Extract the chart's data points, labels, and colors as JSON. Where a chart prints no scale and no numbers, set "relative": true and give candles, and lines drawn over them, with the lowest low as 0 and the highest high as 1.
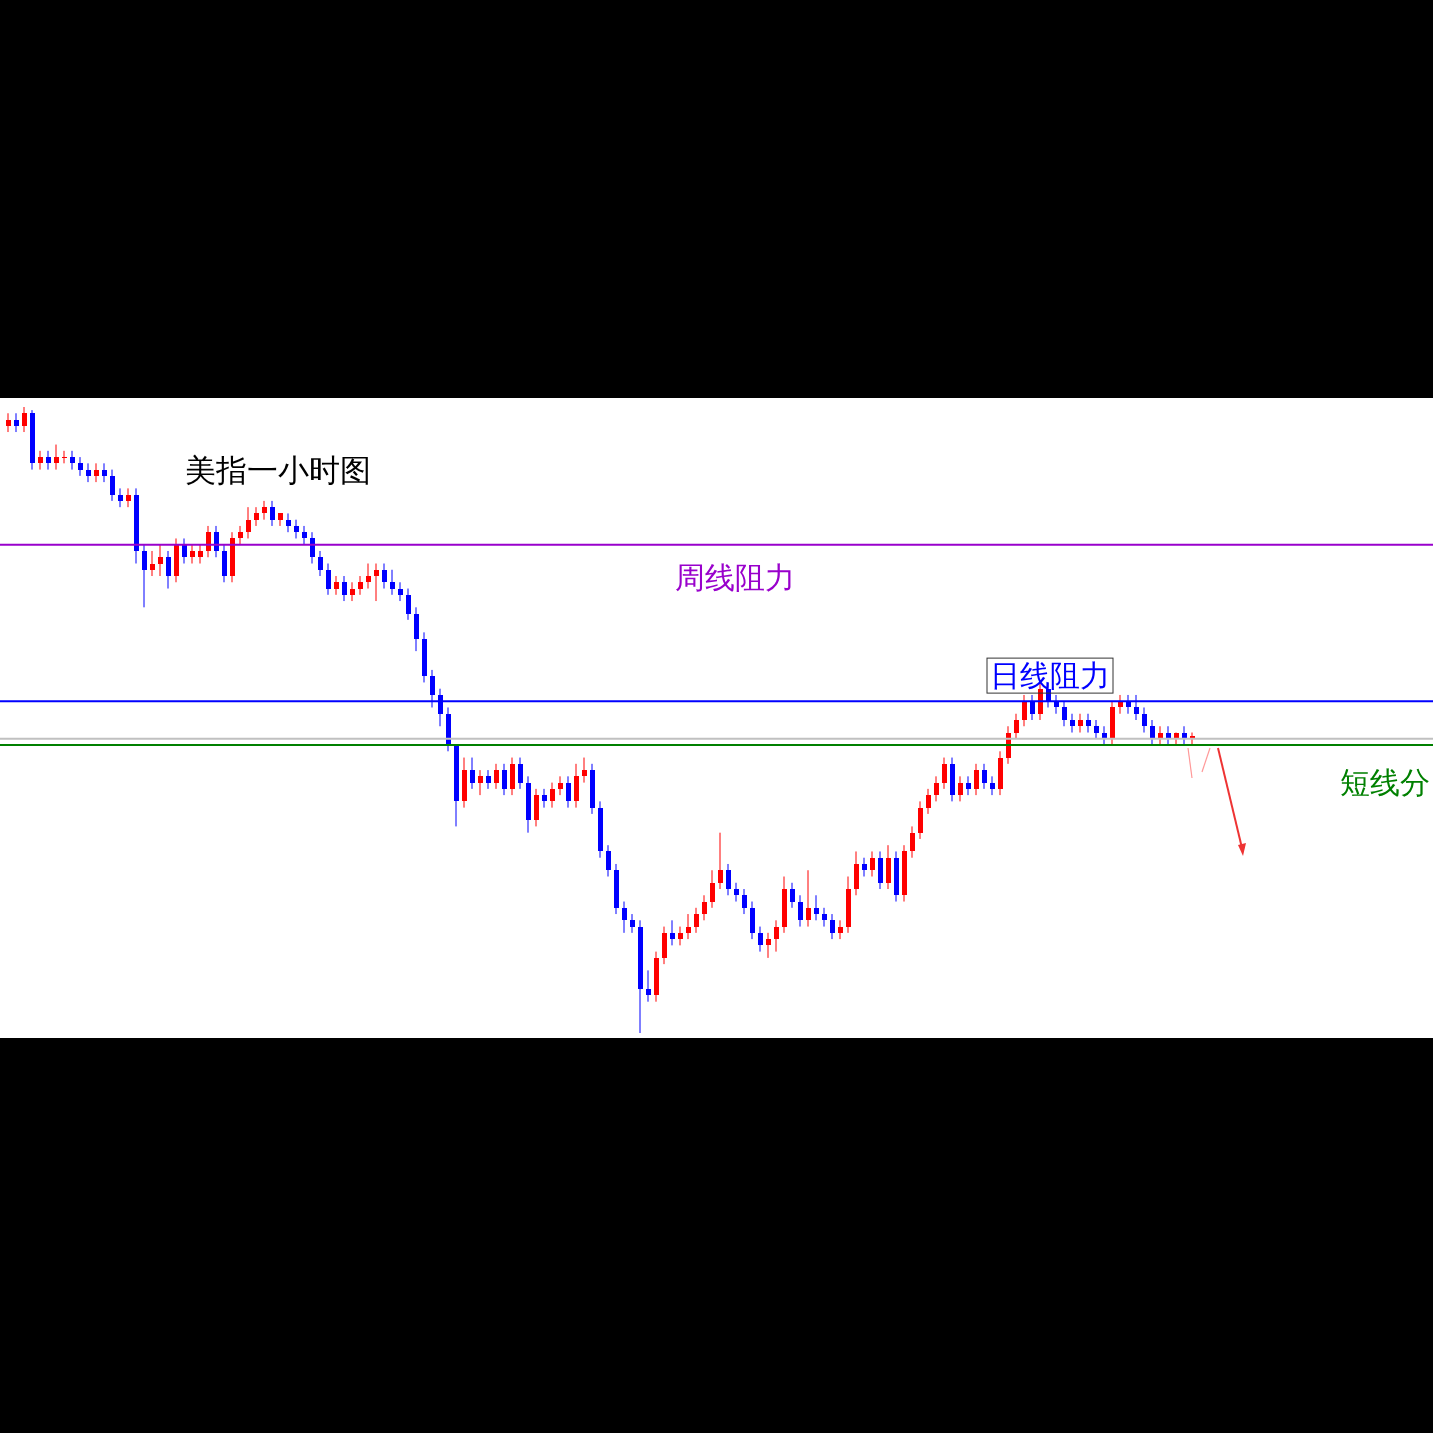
{
  "chart_data": {
    "type": "candlestick",
    "relative": true,
    "title": "美指一小时图",
    "categories": [
      null,
      null,
      null,
      null,
      null,
      null,
      null,
      null,
      null,
      null,
      null,
      null,
      null,
      null,
      null,
      null,
      null,
      null,
      null,
      null,
      null,
      null,
      null,
      null,
      null,
      null,
      null,
      null,
      null,
      null,
      null,
      null,
      null,
      null,
      null,
      null,
      null,
      null,
      null,
      null,
      null,
      null,
      null,
      null,
      null,
      null,
      null,
      null,
      null,
      null,
      null,
      null,
      null,
      null,
      null,
      null,
      null,
      null,
      null,
      null,
      null,
      null,
      null,
      null,
      null,
      null,
      null,
      null,
      null,
      null,
      null,
      null,
      null,
      null,
      null,
      null,
      null,
      null,
      null,
      null,
      null,
      null,
      null,
      null,
      null,
      null,
      null,
      null,
      null,
      null,
      null,
      null,
      null,
      null,
      null,
      null,
      null,
      null,
      null,
      null,
      null,
      null,
      null,
      null,
      null,
      null,
      null,
      null,
      null,
      null,
      null,
      null,
      null,
      null,
      null,
      null,
      null,
      null,
      null,
      null,
      null,
      null,
      null,
      null,
      null,
      null,
      null,
      null,
      null,
      null,
      null,
      null,
      null,
      null,
      null,
      null,
      null,
      null,
      null,
      null,
      null,
      null,
      null,
      null,
      null,
      null,
      null,
      null,
      null
    ],
    "ohlc": [
      [
        0.97,
        0.99,
        0.96,
        0.98
      ],
      [
        0.98,
        0.99,
        0.96,
        0.97
      ],
      [
        0.97,
        1.0,
        0.96,
        0.99
      ],
      [
        0.99,
        0.995,
        0.9,
        0.91
      ],
      [
        0.91,
        0.93,
        0.9,
        0.92
      ],
      [
        0.92,
        0.93,
        0.9,
        0.91
      ],
      [
        0.91,
        0.94,
        0.9,
        0.92
      ],
      [
        0.92,
        0.93,
        0.91,
        0.92
      ],
      [
        0.92,
        0.93,
        0.9,
        0.91
      ],
      [
        0.91,
        0.92,
        0.89,
        0.9
      ],
      [
        0.9,
        0.91,
        0.88,
        0.89
      ],
      [
        0.89,
        0.91,
        0.88,
        0.9
      ],
      [
        0.9,
        0.91,
        0.88,
        0.89
      ],
      [
        0.89,
        0.9,
        0.85,
        0.86
      ],
      [
        0.86,
        0.87,
        0.84,
        0.85
      ],
      [
        0.85,
        0.87,
        0.84,
        0.86
      ],
      [
        0.86,
        0.87,
        0.75,
        0.77
      ],
      [
        0.77,
        0.78,
        0.68,
        0.74
      ],
      [
        0.74,
        0.77,
        0.73,
        0.75
      ],
      [
        0.75,
        0.78,
        0.73,
        0.76
      ],
      [
        0.76,
        0.77,
        0.71,
        0.73
      ],
      [
        0.73,
        0.79,
        0.72,
        0.78
      ],
      [
        0.78,
        0.79,
        0.75,
        0.76
      ],
      [
        0.76,
        0.78,
        0.75,
        0.77
      ],
      [
        0.76,
        0.78,
        0.75,
        0.77
      ],
      [
        0.77,
        0.81,
        0.76,
        0.8
      ],
      [
        0.8,
        0.81,
        0.76,
        0.77
      ],
      [
        0.77,
        0.78,
        0.72,
        0.73
      ],
      [
        0.73,
        0.8,
        0.72,
        0.79
      ],
      [
        0.79,
        0.81,
        0.78,
        0.8
      ],
      [
        0.8,
        0.84,
        0.79,
        0.82
      ],
      [
        0.82,
        0.84,
        0.81,
        0.83
      ],
      [
        0.83,
        0.85,
        0.82,
        0.84
      ],
      [
        0.84,
        0.85,
        0.81,
        0.82
      ],
      [
        0.82,
        0.83,
        0.81,
        0.83
      ],
      [
        0.82,
        0.83,
        0.8,
        0.81
      ],
      [
        0.81,
        0.82,
        0.79,
        0.8
      ],
      [
        0.8,
        0.81,
        0.78,
        0.79
      ],
      [
        0.79,
        0.8,
        0.75,
        0.76
      ],
      [
        0.76,
        0.77,
        0.73,
        0.74
      ],
      [
        0.74,
        0.75,
        0.7,
        0.71
      ],
      [
        0.71,
        0.73,
        0.7,
        0.72
      ],
      [
        0.72,
        0.73,
        0.69,
        0.7
      ],
      [
        0.7,
        0.72,
        0.69,
        0.71
      ],
      [
        0.71,
        0.73,
        0.7,
        0.72
      ],
      [
        0.72,
        0.75,
        0.71,
        0.73
      ],
      [
        0.73,
        0.75,
        0.69,
        0.74
      ],
      [
        0.74,
        0.75,
        0.71,
        0.72
      ],
      [
        0.72,
        0.74,
        0.7,
        0.71
      ],
      [
        0.71,
        0.72,
        0.69,
        0.7
      ],
      [
        0.7,
        0.71,
        0.66,
        0.67
      ],
      [
        0.67,
        0.68,
        0.61,
        0.63
      ],
      [
        0.63,
        0.64,
        0.56,
        0.57
      ],
      [
        0.57,
        0.58,
        0.52,
        0.54
      ],
      [
        0.54,
        0.55,
        0.49,
        0.51
      ],
      [
        0.51,
        0.52,
        0.45,
        0.46
      ],
      [
        0.46,
        0.46,
        0.33,
        0.37
      ],
      [
        0.37,
        0.44,
        0.36,
        0.42
      ],
      [
        0.42,
        0.44,
        0.39,
        0.4
      ],
      [
        0.4,
        0.42,
        0.38,
        0.41
      ],
      [
        0.41,
        0.42,
        0.39,
        0.4
      ],
      [
        0.4,
        0.43,
        0.39,
        0.42
      ],
      [
        0.42,
        0.43,
        0.38,
        0.39
      ],
      [
        0.39,
        0.44,
        0.38,
        0.43
      ],
      [
        0.43,
        0.44,
        0.39,
        0.4
      ],
      [
        0.4,
        0.41,
        0.32,
        0.34
      ],
      [
        0.34,
        0.39,
        0.33,
        0.38
      ],
      [
        0.38,
        0.39,
        0.36,
        0.37
      ],
      [
        0.37,
        0.4,
        0.36,
        0.39
      ],
      [
        0.39,
        0.41,
        0.38,
        0.4
      ],
      [
        0.4,
        0.41,
        0.36,
        0.37
      ],
      [
        0.37,
        0.43,
        0.36,
        0.41
      ],
      [
        0.41,
        0.44,
        0.4,
        0.42
      ],
      [
        0.42,
        0.43,
        0.35,
        0.36
      ],
      [
        0.36,
        0.37,
        0.28,
        0.29
      ],
      [
        0.29,
        0.3,
        0.25,
        0.26
      ],
      [
        0.26,
        0.27,
        0.19,
        0.2
      ],
      [
        0.2,
        0.21,
        0.16,
        0.18
      ],
      [
        0.18,
        0.19,
        0.16,
        0.17
      ],
      [
        0.17,
        0.18,
        0.0,
        0.07
      ],
      [
        0.07,
        0.1,
        0.05,
        0.06
      ],
      [
        0.06,
        0.13,
        0.05,
        0.12
      ],
      [
        0.12,
        0.17,
        0.11,
        0.16
      ],
      [
        0.16,
        0.18,
        0.14,
        0.15
      ],
      [
        0.15,
        0.17,
        0.14,
        0.16
      ],
      [
        0.16,
        0.19,
        0.15,
        0.17
      ],
      [
        0.17,
        0.2,
        0.16,
        0.19
      ],
      [
        0.19,
        0.22,
        0.18,
        0.21
      ],
      [
        0.21,
        0.26,
        0.2,
        0.24
      ],
      [
        0.24,
        0.32,
        0.23,
        0.26
      ],
      [
        0.26,
        0.27,
        0.22,
        0.23
      ],
      [
        0.23,
        0.24,
        0.21,
        0.22
      ],
      [
        0.22,
        0.23,
        0.19,
        0.2
      ],
      [
        0.2,
        0.21,
        0.15,
        0.16
      ],
      [
        0.16,
        0.17,
        0.13,
        0.14
      ],
      [
        0.14,
        0.16,
        0.12,
        0.15
      ],
      [
        0.15,
        0.18,
        0.13,
        0.17
      ],
      [
        0.17,
        0.25,
        0.16,
        0.23
      ],
      [
        0.23,
        0.24,
        0.2,
        0.21
      ],
      [
        0.21,
        0.22,
        0.17,
        0.18
      ],
      [
        0.18,
        0.26,
        0.17,
        0.2
      ],
      [
        0.2,
        0.22,
        0.18,
        0.19
      ],
      [
        0.19,
        0.2,
        0.17,
        0.18
      ],
      [
        0.18,
        0.19,
        0.15,
        0.16
      ],
      [
        0.16,
        0.18,
        0.15,
        0.17
      ],
      [
        0.17,
        0.25,
        0.16,
        0.23
      ],
      [
        0.23,
        0.29,
        0.22,
        0.27
      ],
      [
        0.27,
        0.28,
        0.25,
        0.26
      ],
      [
        0.26,
        0.29,
        0.25,
        0.28
      ],
      [
        0.28,
        0.29,
        0.23,
        0.24
      ],
      [
        0.24,
        0.3,
        0.23,
        0.28
      ],
      [
        0.28,
        0.29,
        0.21,
        0.22
      ],
      [
        0.22,
        0.3,
        0.21,
        0.29
      ],
      [
        0.29,
        0.33,
        0.28,
        0.32
      ],
      [
        0.32,
        0.37,
        0.31,
        0.36
      ],
      [
        0.36,
        0.39,
        0.35,
        0.38
      ],
      [
        0.38,
        0.41,
        0.37,
        0.4
      ],
      [
        0.4,
        0.44,
        0.39,
        0.43
      ],
      [
        0.43,
        0.44,
        0.37,
        0.38
      ],
      [
        0.38,
        0.41,
        0.37,
        0.4
      ],
      [
        0.4,
        0.41,
        0.38,
        0.39
      ],
      [
        0.39,
        0.43,
        0.38,
        0.42
      ],
      [
        0.42,
        0.43,
        0.39,
        0.4
      ],
      [
        0.4,
        0.41,
        0.38,
        0.39
      ],
      [
        0.39,
        0.45,
        0.38,
        0.44
      ],
      [
        0.44,
        0.49,
        0.43,
        0.48
      ],
      [
        0.48,
        0.51,
        0.47,
        0.5
      ],
      [
        0.5,
        0.54,
        0.49,
        0.53
      ],
      [
        0.53,
        0.54,
        0.5,
        0.51
      ],
      [
        0.51,
        0.56,
        0.5,
        0.55
      ],
      [
        0.55,
        0.56,
        0.52,
        0.53
      ],
      [
        0.53,
        0.54,
        0.51,
        0.52
      ],
      [
        0.52,
        0.53,
        0.49,
        0.5
      ],
      [
        0.5,
        0.51,
        0.48,
        0.49
      ],
      [
        0.49,
        0.51,
        0.48,
        0.5
      ],
      [
        0.5,
        0.51,
        0.48,
        0.49
      ],
      [
        0.49,
        0.5,
        0.47,
        0.48
      ],
      [
        0.48,
        0.49,
        0.46,
        0.47
      ],
      [
        0.47,
        0.53,
        0.46,
        0.52
      ],
      [
        0.52,
        0.54,
        0.51,
        0.53
      ],
      [
        0.53,
        0.54,
        0.51,
        0.52
      ],
      [
        0.52,
        0.54,
        0.5,
        0.51
      ],
      [
        0.51,
        0.52,
        0.48,
        0.49
      ],
      [
        0.49,
        0.5,
        0.46,
        0.47
      ],
      [
        0.47,
        0.49,
        0.46,
        0.48
      ],
      [
        0.48,
        0.49,
        0.46,
        0.47
      ],
      [
        0.47,
        0.48,
        0.46,
        0.48
      ],
      [
        0.48,
        0.49,
        0.46,
        0.47
      ],
      [
        0.47,
        0.48,
        0.46,
        0.475
      ]
    ],
    "ref_lines": [
      {
        "axis": "y",
        "value": 0.78,
        "label": "周线阻力",
        "color": "#9900cc"
      },
      {
        "axis": "y",
        "value": 0.53,
        "label": "日线阻力",
        "color": "#0000ff"
      },
      {
        "axis": "y",
        "value": 0.47,
        "color": "#c0c0c0"
      },
      {
        "axis": "y",
        "value": 0.46,
        "label": "短线分",
        "color": "#008000"
      }
    ]
  }
}
